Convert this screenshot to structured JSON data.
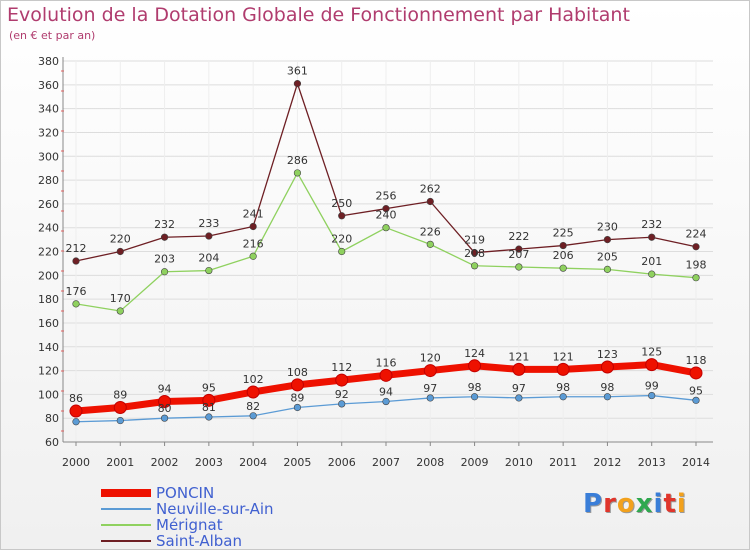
{
  "title": "Evolution de la Dotation Globale de Fonctionnement par Habitant",
  "subtitle": "(en € et par an)",
  "logo_text": "Proxiti",
  "colors": {
    "title": "#b03c6e",
    "axis": "#c8c8c8",
    "grid": "#dddddd",
    "legend_text": "#4060d0"
  },
  "chart_data": {
    "type": "line",
    "title": "Evolution de la Dotation Globale de Fonctionnement par Habitant",
    "subtitle": "(en € et par an)",
    "x": [
      "2000",
      "2001",
      "2002",
      "2003",
      "2004",
      "2005",
      "2006",
      "2007",
      "2008",
      "2009",
      "2010",
      "2011",
      "2012",
      "2013",
      "2014"
    ],
    "ylim": [
      60,
      380
    ],
    "yticks": [
      60,
      80,
      100,
      120,
      140,
      160,
      180,
      200,
      220,
      240,
      260,
      280,
      300,
      320,
      340,
      360,
      380
    ],
    "grid": true,
    "legend_position": "bottom-left",
    "series": [
      {
        "name": "PONCIN",
        "color": "#ee1100",
        "values": [
          86,
          89,
          94,
          95,
          102,
          108,
          112,
          116,
          120,
          124,
          121,
          121,
          123,
          125,
          118
        ],
        "labels": [
          "86",
          "89",
          "94",
          "95",
          "102",
          "108",
          "112",
          "116",
          "120",
          "124",
          "121",
          "121",
          "123",
          "125",
          "118"
        ]
      },
      {
        "name": "Neuville-sur-Ain",
        "color": "#5b9bd5",
        "values": [
          77,
          78,
          80,
          81,
          82,
          89,
          92,
          94,
          97,
          98,
          97,
          98,
          98,
          99,
          95
        ],
        "labels": [
          "",
          "",
          "80",
          "81",
          "82",
          "89",
          "92",
          "94",
          "97",
          "98",
          "97",
          "98",
          "98",
          "99",
          "95"
        ]
      },
      {
        "name": "Mérignat",
        "color": "#8fd15f",
        "values": [
          176,
          170,
          203,
          204,
          216,
          286,
          220,
          240,
          226,
          208,
          207,
          206,
          205,
          201,
          198
        ],
        "labels": [
          "176",
          "170",
          "203",
          "204",
          "216",
          "286",
          "220",
          "240",
          "226",
          "208",
          "207",
          "206",
          "205",
          "201",
          "198"
        ]
      },
      {
        "name": "Saint-Alban",
        "color": "#6e1f24",
        "values": [
          212,
          220,
          232,
          233,
          241,
          361,
          250,
          256,
          262,
          219,
          222,
          225,
          230,
          232,
          224
        ],
        "labels": [
          "212",
          "220",
          "232",
          "233",
          "241",
          "361",
          "250",
          "256",
          "262",
          "219",
          "222",
          "225",
          "230",
          "232",
          "224"
        ]
      }
    ]
  }
}
